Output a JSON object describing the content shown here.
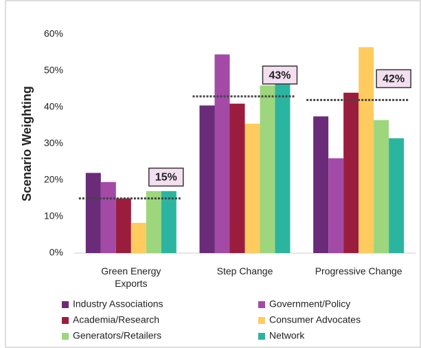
{
  "chart_data": {
    "type": "bar",
    "y_label": "Scenario Weighting",
    "categories": [
      "Green Energy Exports",
      "Step Change",
      "Progressive Change"
    ],
    "series": [
      {
        "name": "Industry Associations",
        "color": "#6a2b78",
        "values": [
          22,
          40.5,
          37.5
        ]
      },
      {
        "name": "Government/Policy",
        "color": "#a24aa6",
        "values": [
          19.5,
          54.5,
          26
        ]
      },
      {
        "name": "Academia/Research",
        "color": "#9b1d3d",
        "values": [
          15,
          41,
          44
        ]
      },
      {
        "name": "Consumer Advocates",
        "color": "#ffcb5e",
        "values": [
          8.3,
          35.5,
          56.5
        ]
      },
      {
        "name": "Generators/Retailers",
        "color": "#9dd67c",
        "values": [
          17,
          46,
          36.5
        ]
      },
      {
        "name": "Network",
        "color": "#2bb5a0",
        "values": [
          17,
          49,
          31.5
        ]
      }
    ],
    "averages": [
      15,
      43,
      42
    ],
    "value_labels": [
      "15%",
      "43%",
      "42%"
    ],
    "ylim": [
      0,
      60
    ],
    "yticks": [
      {
        "value": 0,
        "label": "0%"
      },
      {
        "value": 10,
        "label": "10%"
      },
      {
        "value": 20,
        "label": "20%"
      },
      {
        "value": 30,
        "label": "30%"
      },
      {
        "value": 40,
        "label": "40%"
      },
      {
        "value": 50,
        "label": "50%"
      },
      {
        "value": 60,
        "label": "60%"
      }
    ]
  }
}
